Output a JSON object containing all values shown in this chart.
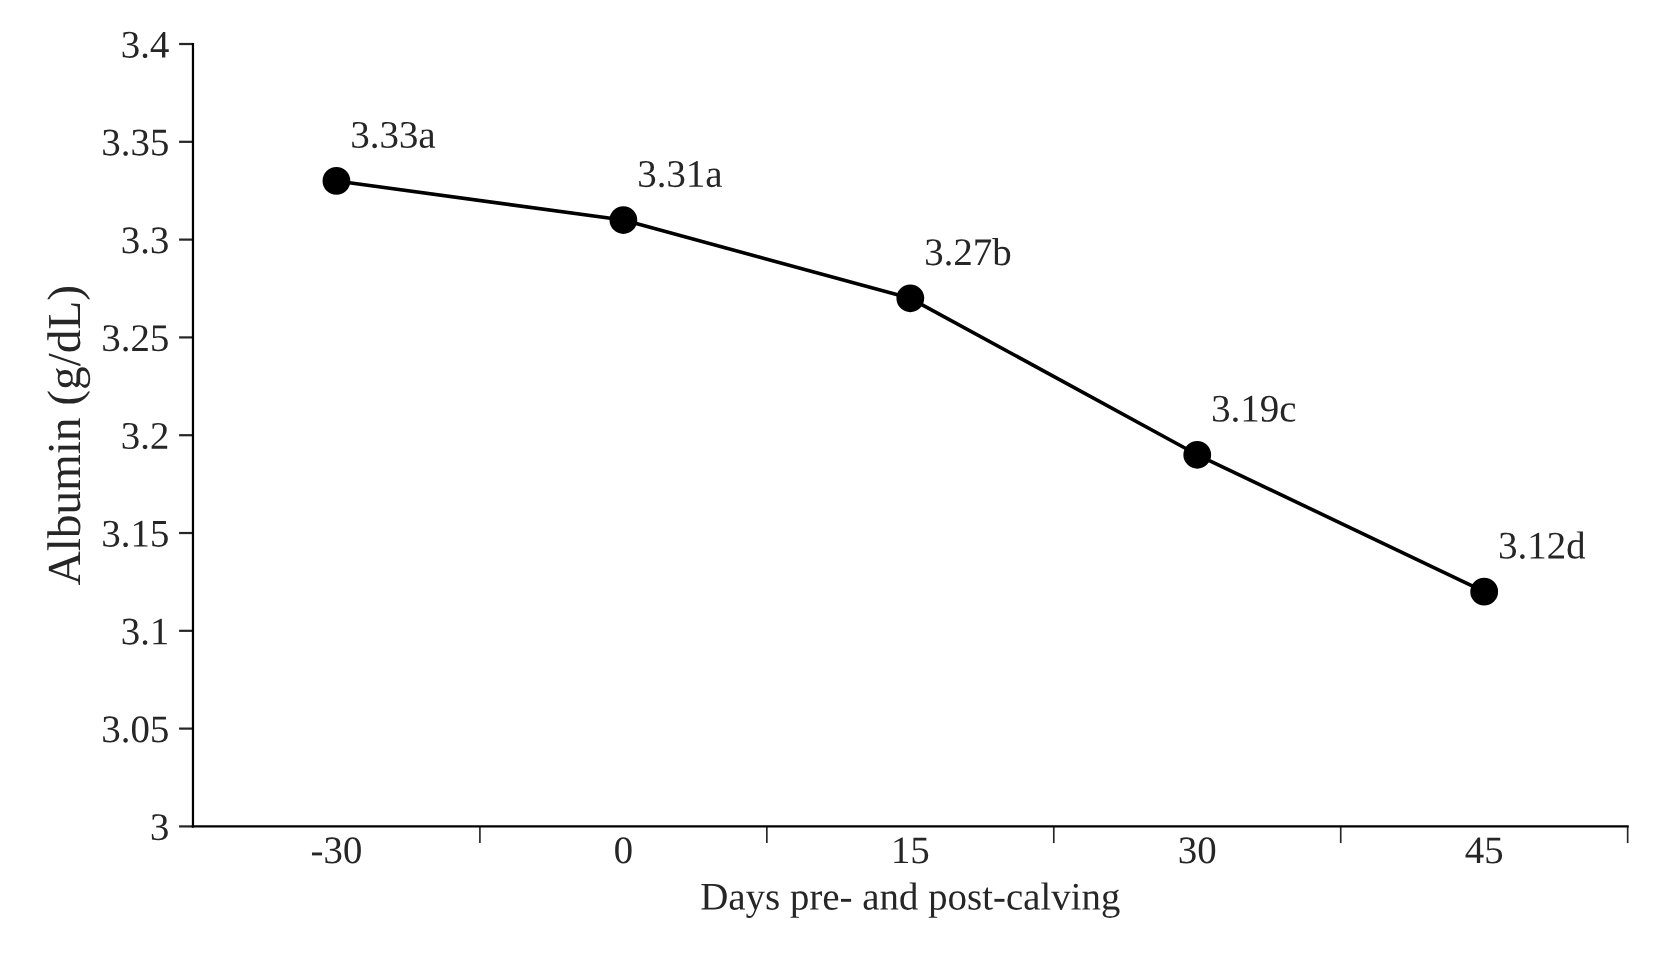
{
  "chart_data": {
    "type": "line",
    "xlabel": "Days pre- and post-calving",
    "ylabel": "Albumin (g/dL)",
    "categories": [
      "-30",
      "0",
      "15",
      "30",
      "45"
    ],
    "series": [
      {
        "color": "#000000",
        "values": [
          3.33,
          3.31,
          3.27,
          3.19,
          3.12
        ],
        "value_labels": [
          "3.33a",
          "3.31a",
          "3.27b",
          "3.19c",
          "3.12d"
        ]
      }
    ],
    "ylim": [
      3,
      3.4
    ],
    "yticks": [
      3,
      3.05,
      3.1,
      3.15,
      3.2,
      3.25,
      3.3,
      3.35,
      3.4
    ],
    "marker": "circle",
    "line_style": "solid",
    "grid": false,
    "legend": false
  }
}
